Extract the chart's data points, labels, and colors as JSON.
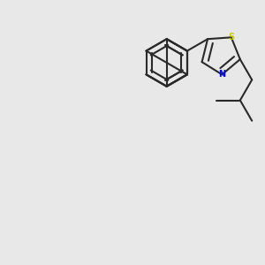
{
  "bg_color": "#e8e8e8",
  "bond_color": "#2a2a2a",
  "N_color": "#0000ee",
  "S_color": "#cccc00",
  "line_width": 1.5,
  "figsize": [
    3.0,
    3.0
  ],
  "dpi": 100
}
